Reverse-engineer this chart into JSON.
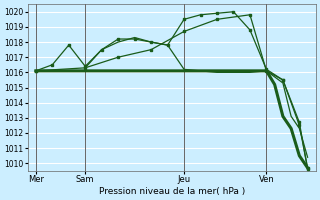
{
  "xlabel": "Pression niveau de la mer( hPa )",
  "bg_color": "#cceeff",
  "grid_color": "#ffffff",
  "line_color": "#1a5c1a",
  "ylim": [
    1009.5,
    1020.5
  ],
  "yticks": [
    1010,
    1011,
    1012,
    1013,
    1014,
    1015,
    1016,
    1017,
    1018,
    1019,
    1020
  ],
  "xtick_labels": [
    "Mer",
    "Sam",
    "Jeu",
    "Ven"
  ],
  "xtick_positions": [
    0,
    6,
    18,
    28
  ],
  "vline_positions": [
    0,
    6,
    18,
    28
  ],
  "xlim": [
    -1,
    34
  ],
  "line_flat_x": [
    0,
    1,
    2,
    3,
    4,
    5,
    6,
    7,
    8,
    9,
    10,
    11,
    12,
    13,
    14,
    15,
    16,
    17,
    18,
    19,
    20,
    21,
    22,
    23,
    24,
    25,
    26,
    27,
    28,
    29,
    30,
    31,
    32,
    33
  ],
  "line_flat_y": [
    1016.1,
    1016.1,
    1016.1,
    1016.1,
    1016.1,
    1016.1,
    1016.1,
    1016.1,
    1016.1,
    1016.1,
    1016.1,
    1016.1,
    1016.1,
    1016.1,
    1016.1,
    1016.1,
    1016.1,
    1016.1,
    1016.1,
    1016.1,
    1016.1,
    1016.1,
    1016.1,
    1016.1,
    1016.1,
    1016.1,
    1016.1,
    1016.1,
    1016.1,
    1015.2,
    1013.1,
    1012.3,
    1010.5,
    1009.7
  ],
  "line_up_x": [
    0,
    2,
    4,
    6,
    8,
    10,
    12,
    14,
    16,
    18,
    20,
    22,
    24,
    26,
    28,
    30,
    32,
    33
  ],
  "line_up_y": [
    1016.1,
    1016.5,
    1017.8,
    1016.4,
    1017.5,
    1018.2,
    1018.2,
    1018.0,
    1017.8,
    1019.5,
    1019.8,
    1019.9,
    1020.0,
    1018.8,
    1016.2,
    1015.5,
    1012.5,
    1009.7
  ],
  "line_diag_x": [
    0,
    6,
    10,
    14,
    18,
    22,
    26,
    28,
    30,
    32,
    33
  ],
  "line_diag_y": [
    1016.1,
    1016.3,
    1017.0,
    1017.5,
    1018.7,
    1019.5,
    1019.8,
    1016.1,
    1015.5,
    1012.7,
    1009.6
  ],
  "line_tri_x": [
    6,
    8,
    10,
    12,
    14,
    16,
    18,
    20,
    22,
    24,
    26,
    28,
    30,
    31,
    32,
    33
  ],
  "line_tri_y": [
    1016.3,
    1017.5,
    1018.0,
    1018.3,
    1018.0,
    1017.8,
    1016.2,
    1016.1,
    1016.0,
    1016.0,
    1016.0,
    1016.1,
    1015.3,
    1013.1,
    1012.3,
    1010.4
  ]
}
